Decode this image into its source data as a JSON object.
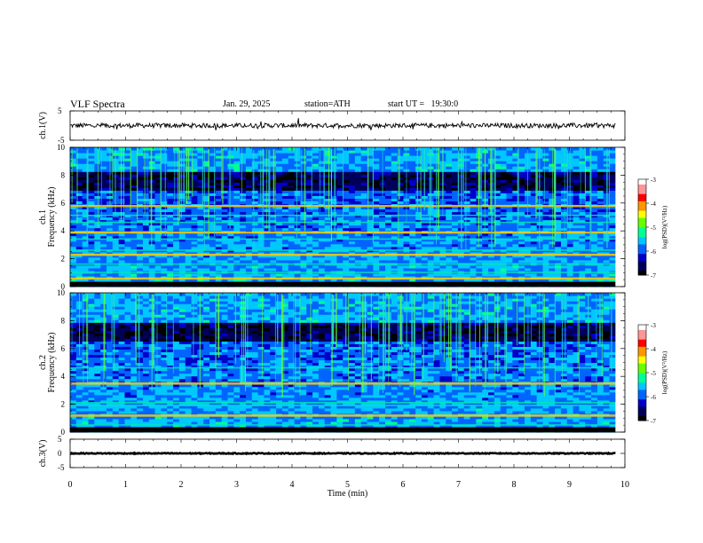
{
  "header": {
    "title": "VLF Spectra",
    "date": "Jan. 29, 2025",
    "station": "station=ATH",
    "start": "start UT =   19:30:0"
  },
  "colors": {
    "scale": [
      "#000000",
      "#00005a",
      "#0000c8",
      "#0064ff",
      "#00c8ff",
      "#00ff96",
      "#64ff00",
      "#ffff00",
      "#ff9600",
      "#ff0000",
      "#ff9696",
      "#ffffff"
    ]
  },
  "chart_data": [
    {
      "type": "line",
      "panel": "ch1-waveform",
      "ylabel": "ch.1(V)",
      "ylim": [
        -5,
        5
      ],
      "yticks": [
        "5",
        "-5"
      ],
      "xlim": [
        0,
        10
      ],
      "baseline_v": 0.0,
      "amplitude_v": 0.8
    },
    {
      "type": "heatmap",
      "panel": "ch1-spectrogram",
      "ylabel_channel": "ch.1",
      "ylabel": "Frequency  (kHz)",
      "ylim": [
        0,
        10
      ],
      "yticks": [
        "0",
        "2",
        "4",
        "6",
        "8",
        "10"
      ],
      "xlim": [
        0,
        10
      ],
      "x_data_end_min": 9.83,
      "quiet_band_khz": [
        7.0,
        8.2
      ],
      "lines_khz": [
        0.3,
        0.6,
        1.0,
        1.6,
        2.3,
        2.6,
        3.4,
        3.9,
        4.6,
        5.1,
        5.8
      ],
      "colorbar": {
        "label": "log(PSD)(V²/Hz)",
        "range": [
          -7,
          -3
        ],
        "ticks": [
          "-3",
          "-4",
          "-5",
          "-6",
          "-7"
        ]
      }
    },
    {
      "type": "heatmap",
      "panel": "ch2-spectrogram",
      "ylabel_channel": "ch.2",
      "ylabel": "Frequency  (kHz)",
      "ylim": [
        0,
        10
      ],
      "yticks": [
        "0",
        "2",
        "4",
        "6",
        "8",
        "10"
      ],
      "xlim": [
        0,
        10
      ],
      "x_data_end_min": 9.83,
      "quiet_band_khz": [
        6.5,
        7.8
      ],
      "lines_khz": [
        0.5,
        1.2,
        1.9,
        2.1,
        3.5,
        4.6
      ],
      "colorbar": {
        "label": "log(PSD)(V²/Hz)",
        "range": [
          -7,
          -3
        ],
        "ticks": [
          "-3",
          "-4",
          "-5",
          "-6",
          "-7"
        ]
      }
    },
    {
      "type": "line",
      "panel": "ch3-waveform",
      "ylabel": "ch.3(V)",
      "ylim": [
        -5,
        5
      ],
      "yticks": [
        "5",
        "0",
        "-5"
      ],
      "xlim": [
        0,
        10
      ],
      "baseline_v": 0.0,
      "amplitude_v": 0.15
    }
  ],
  "xaxis": {
    "label": "Time  (min)",
    "ticks": [
      "0",
      "1",
      "2",
      "3",
      "4",
      "5",
      "6",
      "7",
      "8",
      "9",
      "10"
    ]
  }
}
